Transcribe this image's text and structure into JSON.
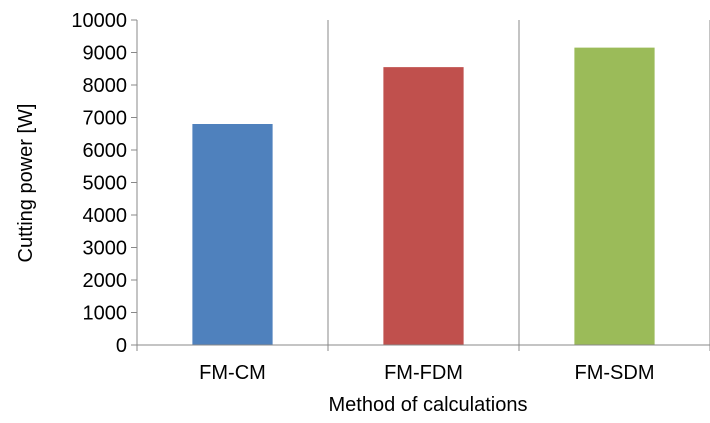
{
  "chart_data": {
    "type": "bar",
    "categories": [
      "FM-CM",
      "FM-FDM",
      "FM-SDM"
    ],
    "values": [
      6800,
      8550,
      9150
    ],
    "colors": [
      "#4F81BD",
      "#C0504D",
      "#9BBB59"
    ],
    "xlabel": "Method of calculations",
    "ylabel": "Cutting power [W]",
    "ylim": [
      0,
      10000
    ],
    "yticks": [
      "0",
      "1000",
      "2000",
      "3000",
      "4000",
      "5000",
      "6000",
      "7000",
      "8000",
      "9000",
      "10000"
    ],
    "grid": "vertical lines between categories",
    "legend": "none"
  }
}
